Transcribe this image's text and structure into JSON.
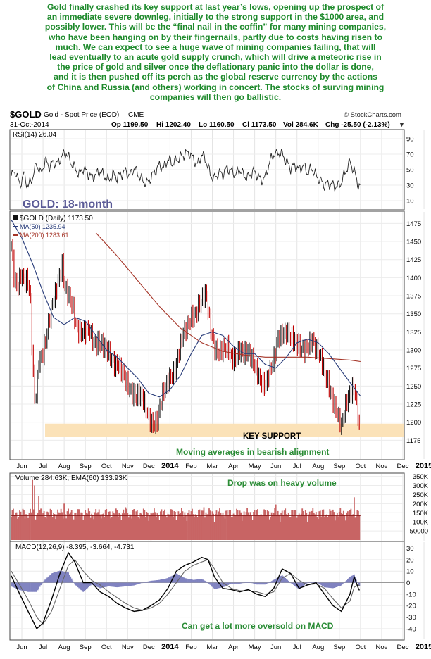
{
  "commentary": [
    "Gold finally crashed its key support at last year’s lows, opening up the prospect of",
    "an immediate severe downleg, initially to the strong support in the $1000 area, and",
    "possibly lower. This will be the “final nail in the coffin” for many mining companies,",
    "who have been hanging on by their fingernails, partly due to costs having risen to",
    "much. We can expect to see a huge wave of mining companies failing, that will",
    "lead eventually to an acute gold supply crunch, which will drive a meteoric rise in",
    "the price of gold and silver once the deflationary panic into the dollar is done,",
    "and it is then pushed off its perch as the global reserve currency by the actions",
    "of China and Russia (and others) working in concert. The stocks of surving mining",
    "companies will then go ballistic."
  ],
  "header": {
    "symbol": "$GOLD",
    "name": "Gold - Spot Price (EOD)",
    "exchange": "CME",
    "date": "31-Oct-2014",
    "watermark": "© StockCharts.com",
    "op": "Op 1199.50",
    "hi": "Hi 1202.40",
    "lo": "Lo 1160.50",
    "cl": "Cl 1173.50",
    "vol": "Vol 284.6K",
    "chg": "Chg -25.50 (-2.13%)",
    "chg_arrow": "▼"
  },
  "chart_data": {
    "type": "line",
    "title": "GOLD: 18-month",
    "x_months": [
      "Jun",
      "Jul",
      "Aug",
      "Sep",
      "Oct",
      "Nov",
      "Dec",
      "2014",
      "Feb",
      "Mar",
      "Apr",
      "May",
      "Jun",
      "Jul",
      "Aug",
      "Sep",
      "Oct",
      "Nov",
      "Dec",
      "2015"
    ],
    "rsi": {
      "label": "RSI(14) 26.04",
      "ylim": [
        0,
        100
      ],
      "ticks": [
        10,
        30,
        50,
        70,
        90
      ],
      "levels": [
        70,
        50,
        30
      ],
      "series": [
        [
          0,
          42
        ],
        [
          0.2,
          48
        ],
        [
          0.4,
          30
        ],
        [
          0.6,
          44
        ],
        [
          0.8,
          28
        ],
        [
          1.0,
          40
        ],
        [
          1.2,
          58
        ],
        [
          1.4,
          44
        ],
        [
          1.6,
          62
        ],
        [
          1.8,
          54
        ],
        [
          2.0,
          60
        ],
        [
          2.2,
          58
        ],
        [
          2.4,
          68
        ],
        [
          2.6,
          72
        ],
        [
          2.8,
          60
        ],
        [
          3.0,
          52
        ],
        [
          3.2,
          44
        ],
        [
          3.4,
          52
        ],
        [
          3.6,
          46
        ],
        [
          3.8,
          40
        ],
        [
          4.0,
          44
        ],
        [
          4.2,
          48
        ],
        [
          4.4,
          42
        ],
        [
          4.6,
          36
        ],
        [
          4.8,
          44
        ],
        [
          5.0,
          40
        ],
        [
          5.2,
          44
        ],
        [
          5.4,
          48
        ],
        [
          5.6,
          42
        ],
        [
          5.8,
          52
        ],
        [
          6.0,
          44
        ],
        [
          6.2,
          36
        ],
        [
          6.4,
          32
        ],
        [
          6.6,
          40
        ],
        [
          6.8,
          48
        ],
        [
          7.0,
          56
        ],
        [
          7.2,
          52
        ],
        [
          7.4,
          64
        ],
        [
          7.6,
          58
        ],
        [
          7.8,
          62
        ],
        [
          8.0,
          66
        ],
        [
          8.2,
          70
        ],
        [
          8.4,
          72
        ],
        [
          8.6,
          64
        ],
        [
          8.8,
          56
        ],
        [
          9.0,
          70
        ],
        [
          9.2,
          62
        ],
        [
          9.4,
          44
        ],
        [
          9.6,
          38
        ],
        [
          9.8,
          46
        ],
        [
          10.0,
          44
        ],
        [
          10.2,
          52
        ],
        [
          10.4,
          48
        ],
        [
          10.6,
          44
        ],
        [
          10.8,
          50
        ],
        [
          11.0,
          42
        ],
        [
          11.2,
          40
        ],
        [
          11.4,
          48
        ],
        [
          11.6,
          44
        ],
        [
          11.8,
          36
        ],
        [
          12.0,
          40
        ],
        [
          12.2,
          60
        ],
        [
          12.4,
          70
        ],
        [
          12.6,
          72
        ],
        [
          12.8,
          70
        ],
        [
          13.0,
          60
        ],
        [
          13.2,
          52
        ],
        [
          13.4,
          56
        ],
        [
          13.6,
          50
        ],
        [
          13.8,
          56
        ],
        [
          14.0,
          46
        ],
        [
          14.2,
          52
        ],
        [
          14.4,
          42
        ],
        [
          14.6,
          36
        ],
        [
          14.8,
          30
        ],
        [
          15.0,
          32
        ],
        [
          15.2,
          30
        ],
        [
          15.4,
          28
        ],
        [
          15.6,
          34
        ],
        [
          15.8,
          48
        ],
        [
          16.0,
          60
        ],
        [
          16.2,
          48
        ],
        [
          16.4,
          30
        ],
        [
          16.5,
          26
        ]
      ]
    },
    "price": {
      "legend": [
        "$GOLD (Daily) 1173.50",
        "MA(50) 1235.94",
        "MA(200) 1283.61"
      ],
      "ylim": [
        1150,
        1490
      ],
      "ticks": [
        1175,
        1200,
        1225,
        1250,
        1275,
        1300,
        1325,
        1350,
        1375,
        1400,
        1425,
        1450,
        1475
      ],
      "support_band": [
        1180,
        1198
      ],
      "close": [
        [
          0,
          1445
        ],
        [
          0.15,
          1400
        ],
        [
          0.3,
          1390
        ],
        [
          0.45,
          1410
        ],
        [
          0.6,
          1395
        ],
        [
          0.75,
          1395
        ],
        [
          0.9,
          1370
        ],
        [
          1.0,
          1280
        ],
        [
          1.1,
          1230
        ],
        [
          1.2,
          1240
        ],
        [
          1.3,
          1285
        ],
        [
          1.5,
          1300
        ],
        [
          1.7,
          1330
        ],
        [
          1.9,
          1360
        ],
        [
          2.1,
          1375
        ],
        [
          2.3,
          1400
        ],
        [
          2.4,
          1415
        ],
        [
          2.5,
          1390
        ],
        [
          2.7,
          1380
        ],
        [
          2.9,
          1365
        ],
        [
          3.1,
          1330
        ],
        [
          3.3,
          1320
        ],
        [
          3.5,
          1320
        ],
        [
          3.7,
          1325
        ],
        [
          3.9,
          1310
        ],
        [
          4.1,
          1315
        ],
        [
          4.3,
          1310
        ],
        [
          4.5,
          1300
        ],
        [
          4.7,
          1285
        ],
        [
          4.9,
          1275
        ],
        [
          5.1,
          1280
        ],
        [
          5.3,
          1270
        ],
        [
          5.5,
          1255
        ],
        [
          5.7,
          1240
        ],
        [
          5.9,
          1230
        ],
        [
          6.1,
          1235
        ],
        [
          6.3,
          1225
        ],
        [
          6.5,
          1210
        ],
        [
          6.7,
          1200
        ],
        [
          6.9,
          1205
        ],
        [
          7.1,
          1230
        ],
        [
          7.3,
          1245
        ],
        [
          7.5,
          1260
        ],
        [
          7.7,
          1270
        ],
        [
          7.9,
          1300
        ],
        [
          8.1,
          1325
        ],
        [
          8.3,
          1330
        ],
        [
          8.5,
          1340
        ],
        [
          8.7,
          1345
        ],
        [
          8.9,
          1365
        ],
        [
          9.1,
          1380
        ],
        [
          9.2,
          1385
        ],
        [
          9.4,
          1335
        ],
        [
          9.6,
          1300
        ],
        [
          9.8,
          1290
        ],
        [
          10.0,
          1300
        ],
        [
          10.2,
          1305
        ],
        [
          10.4,
          1295
        ],
        [
          10.6,
          1290
        ],
        [
          10.8,
          1300
        ],
        [
          11.0,
          1290
        ],
        [
          11.2,
          1295
        ],
        [
          11.4,
          1285
        ],
        [
          11.6,
          1275
        ],
        [
          11.8,
          1260
        ],
        [
          12.0,
          1250
        ],
        [
          12.2,
          1265
        ],
        [
          12.4,
          1280
        ],
        [
          12.6,
          1315
        ],
        [
          12.8,
          1325
        ],
        [
          13.0,
          1330
        ],
        [
          13.2,
          1320
        ],
        [
          13.4,
          1310
        ],
        [
          13.6,
          1300
        ],
        [
          13.8,
          1295
        ],
        [
          14.0,
          1305
        ],
        [
          14.2,
          1320
        ],
        [
          14.4,
          1305
        ],
        [
          14.6,
          1290
        ],
        [
          14.8,
          1265
        ],
        [
          15.0,
          1245
        ],
        [
          15.2,
          1230
        ],
        [
          15.4,
          1215
        ],
        [
          15.6,
          1200
        ],
        [
          15.8,
          1225
        ],
        [
          16.0,
          1235
        ],
        [
          16.2,
          1245
        ],
        [
          16.4,
          1205
        ],
        [
          16.5,
          1173.5
        ]
      ],
      "ma50": [
        [
          0,
          1480
        ],
        [
          0.5,
          1455
        ],
        [
          1.0,
          1420
        ],
        [
          1.5,
          1380
        ],
        [
          2.0,
          1345
        ],
        [
          2.5,
          1335
        ],
        [
          3.0,
          1345
        ],
        [
          3.5,
          1340
        ],
        [
          4.0,
          1320
        ],
        [
          4.5,
          1300
        ],
        [
          5.0,
          1290
        ],
        [
          5.5,
          1275
        ],
        [
          6.0,
          1260
        ],
        [
          6.5,
          1240
        ],
        [
          7.0,
          1235
        ],
        [
          7.5,
          1245
        ],
        [
          8.0,
          1265
        ],
        [
          8.5,
          1295
        ],
        [
          9.0,
          1320
        ],
        [
          9.5,
          1325
        ],
        [
          10.0,
          1320
        ],
        [
          10.5,
          1305
        ],
        [
          11.0,
          1295
        ],
        [
          11.5,
          1295
        ],
        [
          12.0,
          1280
        ],
        [
          12.5,
          1275
        ],
        [
          13.0,
          1290
        ],
        [
          13.5,
          1310
        ],
        [
          14.0,
          1315
        ],
        [
          14.5,
          1310
        ],
        [
          15.0,
          1295
        ],
        [
          15.5,
          1275
        ],
        [
          16.0,
          1255
        ],
        [
          16.5,
          1236
        ]
      ],
      "ma200": [
        [
          4.0,
          1462
        ],
        [
          5.0,
          1430
        ],
        [
          6.0,
          1395
        ],
        [
          7.0,
          1360
        ],
        [
          8.0,
          1330
        ],
        [
          9.0,
          1310
        ],
        [
          10.0,
          1298
        ],
        [
          11.0,
          1293
        ],
        [
          12.0,
          1290
        ],
        [
          13.0,
          1290
        ],
        [
          14.0,
          1290
        ],
        [
          15.0,
          1288
        ],
        [
          16.0,
          1286
        ],
        [
          16.5,
          1284
        ]
      ]
    },
    "volume": {
      "label": "Volume 284.63K, EMA(60) 133.93K",
      "ylim": [
        0,
        360000
      ],
      "ticks": [
        50000,
        100000,
        150000,
        200000,
        250000,
        300000,
        350000
      ],
      "tick_labels": [
        "50000",
        "100K",
        "150K",
        "200K",
        "250K",
        "300K",
        "350K"
      ],
      "ema": 133930,
      "last": 284630,
      "spikes": [
        [
          1.0,
          330000
        ],
        [
          1.1,
          300000
        ],
        [
          1.3,
          240000
        ],
        [
          2.5,
          200000
        ],
        [
          5.4,
          180000
        ],
        [
          6.6,
          150000
        ],
        [
          9.1,
          180000
        ],
        [
          12.5,
          195000
        ],
        [
          16.2,
          235000
        ],
        [
          16.5,
          284630
        ]
      ]
    },
    "macd": {
      "label": "MACD(12,26,9) -8.395, -3.664, -4.731",
      "ylim": [
        -48,
        34
      ],
      "ticks": [
        -40,
        -30,
        -20,
        -10,
        0,
        10,
        20,
        30
      ],
      "macd": [
        [
          0,
          6
        ],
        [
          0.4,
          -10
        ],
        [
          0.8,
          -25
        ],
        [
          1.2,
          -40
        ],
        [
          1.5,
          -35
        ],
        [
          1.9,
          -15
        ],
        [
          2.3,
          8
        ],
        [
          2.7,
          26
        ],
        [
          3.0,
          18
        ],
        [
          3.4,
          0
        ],
        [
          3.8,
          0
        ],
        [
          4.2,
          -8
        ],
        [
          4.6,
          -12
        ],
        [
          5.0,
          -18
        ],
        [
          5.4,
          -22
        ],
        [
          5.8,
          -25
        ],
        [
          6.2,
          -24
        ],
        [
          6.6,
          -20
        ],
        [
          7.0,
          -15
        ],
        [
          7.4,
          -5
        ],
        [
          7.8,
          10
        ],
        [
          8.2,
          15
        ],
        [
          8.6,
          18
        ],
        [
          9.0,
          22
        ],
        [
          9.3,
          20
        ],
        [
          9.6,
          5
        ],
        [
          10.0,
          -5
        ],
        [
          10.4,
          -6
        ],
        [
          10.8,
          -8
        ],
        [
          11.2,
          -6
        ],
        [
          11.6,
          -10
        ],
        [
          12.0,
          -12
        ],
        [
          12.4,
          -5
        ],
        [
          12.8,
          12
        ],
        [
          13.2,
          8
        ],
        [
          13.6,
          -5
        ],
        [
          14.0,
          -2
        ],
        [
          14.4,
          0
        ],
        [
          14.8,
          -10
        ],
        [
          15.2,
          -20
        ],
        [
          15.6,
          -25
        ],
        [
          16.0,
          -10
        ],
        [
          16.2,
          5
        ],
        [
          16.4,
          -5
        ],
        [
          16.5,
          -8.4
        ]
      ],
      "signal": [
        [
          0,
          10
        ],
        [
          0.4,
          -2
        ],
        [
          0.8,
          -15
        ],
        [
          1.2,
          -30
        ],
        [
          1.5,
          -36
        ],
        [
          1.9,
          -25
        ],
        [
          2.3,
          -5
        ],
        [
          2.7,
          15
        ],
        [
          3.0,
          20
        ],
        [
          3.4,
          10
        ],
        [
          3.8,
          2
        ],
        [
          4.2,
          -2
        ],
        [
          4.6,
          -8
        ],
        [
          5.0,
          -13
        ],
        [
          5.4,
          -18
        ],
        [
          5.8,
          -22
        ],
        [
          6.2,
          -24
        ],
        [
          6.6,
          -22
        ],
        [
          7.0,
          -18
        ],
        [
          7.4,
          -10
        ],
        [
          7.8,
          0
        ],
        [
          8.2,
          10
        ],
        [
          8.6,
          15
        ],
        [
          9.0,
          18
        ],
        [
          9.3,
          20
        ],
        [
          9.6,
          12
        ],
        [
          10.0,
          0
        ],
        [
          10.4,
          -5
        ],
        [
          10.8,
          -7
        ],
        [
          11.2,
          -7
        ],
        [
          11.6,
          -8
        ],
        [
          12.0,
          -10
        ],
        [
          12.4,
          -8
        ],
        [
          12.8,
          4
        ],
        [
          13.2,
          8
        ],
        [
          13.6,
          2
        ],
        [
          14.0,
          -2
        ],
        [
          14.4,
          -1
        ],
        [
          14.8,
          -5
        ],
        [
          15.2,
          -14
        ],
        [
          15.6,
          -22
        ],
        [
          16.0,
          -16
        ],
        [
          16.2,
          -4
        ],
        [
          16.4,
          -2
        ],
        [
          16.5,
          -3.7
        ]
      ]
    },
    "annotations": {
      "key_support": "KEY SUPPORT",
      "moving_averages": "Moving averages in bearish alignment",
      "volume_note": "Drop was on heavy volume",
      "macd_note": "Can get a lot more oversold on MACD"
    }
  },
  "colors": {
    "commentary": "#1e8a2c",
    "annotation": "#2a8c35",
    "title": "#5a5a96",
    "price": "#111111",
    "price_down": "#c00000",
    "ma50": "#263a78",
    "ma200": "#a53528",
    "volume_bar": "#c86464",
    "support": "#fbe2b8",
    "macd_hist": "#8083c0"
  }
}
